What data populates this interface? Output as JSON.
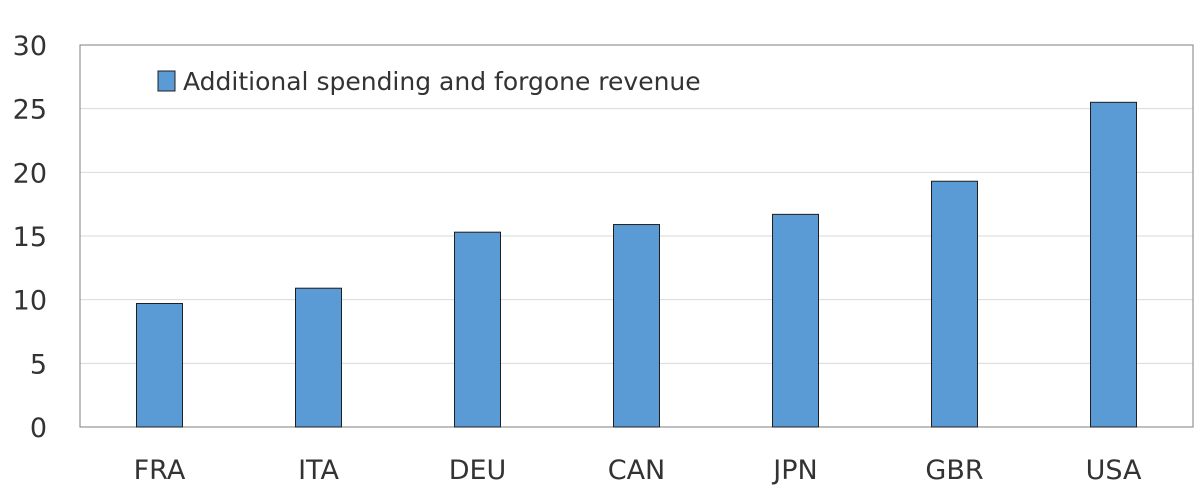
{
  "chart_data": {
    "type": "bar",
    "categories": [
      "FRA",
      "ITA",
      "DEU",
      "CAN",
      "JPN",
      "GBR",
      "USA"
    ],
    "series": [
      {
        "name": "Additional spending and forgone revenue",
        "values": [
          9.7,
          10.9,
          15.3,
          15.9,
          16.7,
          19.3,
          25.5
        ],
        "color": "#5b9bd5"
      }
    ],
    "title": "",
    "xlabel": "",
    "ylabel": "",
    "ylim": [
      0,
      30
    ],
    "yticks": [
      "0",
      "5",
      "10",
      "15",
      "20",
      "25",
      "30"
    ],
    "grid": true,
    "legend_position": "top-left"
  }
}
